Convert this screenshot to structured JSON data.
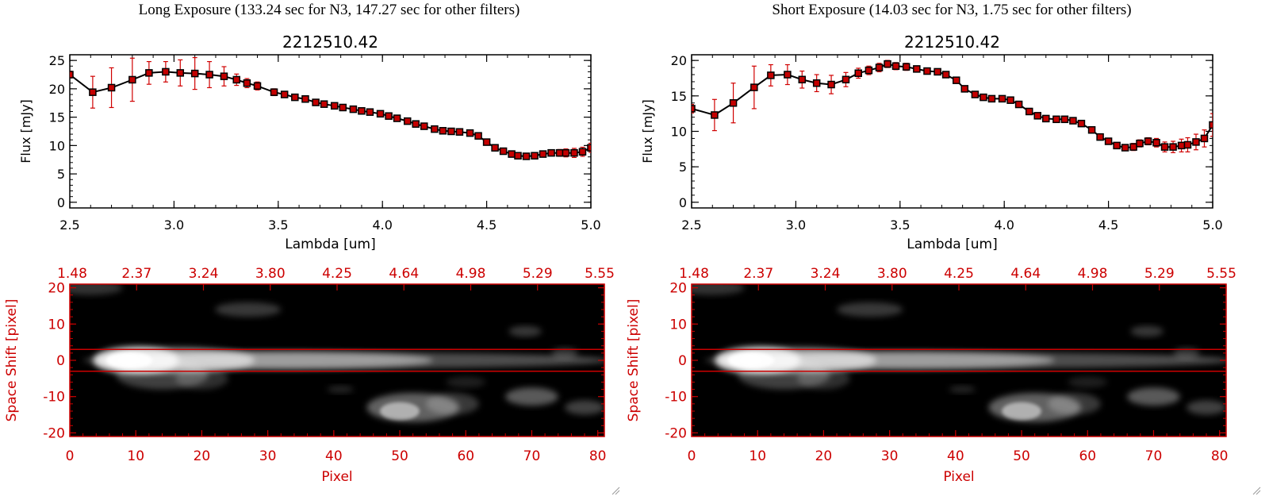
{
  "panels": [
    {
      "heading": "Long Exposure (133.24 sec for N3, 147.27 sec for other filters)"
    },
    {
      "heading": "Short Exposure (14.03 sec for N3, 1.75 sec for other filters)"
    }
  ],
  "chart_data": [
    {
      "type": "line",
      "title": "2212510.42",
      "xlabel": "Lambda [um]",
      "ylabel": "Flux [mJy]",
      "xlim": [
        2.5,
        5.0
      ],
      "ylim": [
        -1,
        26
      ],
      "xticks": [
        "2.5",
        "3.0",
        "3.5",
        "4.0",
        "4.5",
        "5.0"
      ],
      "yticks": [
        "0",
        "5",
        "10",
        "15",
        "20",
        "25"
      ],
      "series": [
        {
          "x": [
            2.5,
            2.61,
            2.7,
            2.8,
            2.88,
            2.96,
            3.03,
            3.1,
            3.17,
            3.24,
            3.3,
            3.35,
            3.4,
            3.48,
            3.53,
            3.58,
            3.63,
            3.68,
            3.72,
            3.77,
            3.81,
            3.86,
            3.9,
            3.94,
            3.99,
            4.03,
            4.07,
            4.12,
            4.16,
            4.2,
            4.25,
            4.29,
            4.33,
            4.37,
            4.42,
            4.46,
            4.5,
            4.54,
            4.58,
            4.62,
            4.65,
            4.69,
            4.73,
            4.77,
            4.81,
            4.85,
            4.88,
            4.92,
            4.96,
            5.0
          ],
          "y": [
            22.5,
            19.4,
            20.2,
            21.6,
            22.8,
            23.0,
            22.8,
            22.7,
            22.5,
            22.2,
            21.6,
            21.0,
            20.5,
            19.4,
            19.0,
            18.5,
            18.2,
            17.6,
            17.3,
            17.0,
            16.7,
            16.4,
            16.1,
            15.9,
            15.6,
            15.2,
            14.8,
            14.3,
            13.8,
            13.4,
            12.9,
            12.6,
            12.5,
            12.4,
            12.2,
            11.7,
            10.6,
            9.6,
            9.0,
            8.5,
            8.2,
            8.1,
            8.2,
            8.5,
            8.7,
            8.7,
            8.7,
            8.7,
            8.9,
            9.6
          ],
          "yerr": [
            0.6,
            2.8,
            3.5,
            3.8,
            2.0,
            1.8,
            2.3,
            2.8,
            2.3,
            1.7,
            1.0,
            0.8,
            0.7,
            0.6,
            0.5,
            0.5,
            0.5,
            0.5,
            0.5,
            0.5,
            0.5,
            0.5,
            0.5,
            0.5,
            0.5,
            0.5,
            0.5,
            0.5,
            0.5,
            0.5,
            0.5,
            0.5,
            0.5,
            0.5,
            0.5,
            0.5,
            0.5,
            0.5,
            0.5,
            0.5,
            0.5,
            0.5,
            0.5,
            0.5,
            0.5,
            0.6,
            0.7,
            0.8,
            0.8,
            0.8
          ]
        }
      ]
    },
    {
      "type": "heatmap",
      "xlabel": "Pixel",
      "ylabel": "Space Shift [pixel]",
      "xlim": [
        0,
        81
      ],
      "ylim": [
        -21,
        21
      ],
      "xticks": [
        "0",
        "10",
        "20",
        "30",
        "40",
        "50",
        "60",
        "70",
        "80"
      ],
      "yticks": [
        "-20",
        "-10",
        "0",
        "10",
        "20"
      ],
      "top_axis_labels": [
        "1.48",
        "2.37",
        "3.24",
        "3.80",
        "4.25",
        "4.64",
        "4.98",
        "5.29",
        "5.55"
      ],
      "aperture_lines": [
        3,
        -3
      ],
      "colormap": "grayscale"
    },
    {
      "type": "line",
      "title": "2212510.42",
      "xlabel": "Lambda [um]",
      "ylabel": "Flux [mJy]",
      "xlim": [
        2.5,
        5.0
      ],
      "ylim": [
        -0.8,
        20.8
      ],
      "xticks": [
        "2.5",
        "3.0",
        "3.5",
        "4.0",
        "4.5",
        "5.0"
      ],
      "yticks": [
        "0",
        "5",
        "10",
        "15",
        "20"
      ],
      "series": [
        {
          "x": [
            2.5,
            2.61,
            2.7,
            2.8,
            2.88,
            2.96,
            3.03,
            3.1,
            3.17,
            3.24,
            3.3,
            3.35,
            3.4,
            3.44,
            3.48,
            3.53,
            3.58,
            3.63,
            3.68,
            3.72,
            3.77,
            3.81,
            3.86,
            3.9,
            3.94,
            3.99,
            4.03,
            4.07,
            4.12,
            4.16,
            4.2,
            4.25,
            4.29,
            4.33,
            4.37,
            4.42,
            4.46,
            4.5,
            4.54,
            4.58,
            4.62,
            4.65,
            4.69,
            4.73,
            4.77,
            4.81,
            4.85,
            4.88,
            4.92,
            4.96,
            5.0
          ],
          "y": [
            13.2,
            12.3,
            14.0,
            16.2,
            17.9,
            18.0,
            17.3,
            16.8,
            16.6,
            17.3,
            18.2,
            18.6,
            19.0,
            19.5,
            19.2,
            19.1,
            18.8,
            18.5,
            18.4,
            18.0,
            17.2,
            16.0,
            15.2,
            14.8,
            14.6,
            14.6,
            14.4,
            13.8,
            12.8,
            12.2,
            11.8,
            11.7,
            11.7,
            11.5,
            11.1,
            10.2,
            9.2,
            8.6,
            8.0,
            7.7,
            7.8,
            8.3,
            8.6,
            8.4,
            7.8,
            7.8,
            8.0,
            8.1,
            8.5,
            9.0,
            10.9
          ],
          "yerr": [
            0.6,
            2.2,
            2.8,
            3.0,
            1.5,
            1.4,
            1.2,
            1.2,
            1.3,
            1.0,
            0.7,
            0.6,
            0.6,
            0.5,
            0.5,
            0.5,
            0.4,
            0.4,
            0.4,
            0.4,
            0.4,
            0.4,
            0.4,
            0.4,
            0.4,
            0.4,
            0.4,
            0.4,
            0.4,
            0.4,
            0.4,
            0.4,
            0.4,
            0.4,
            0.4,
            0.4,
            0.4,
            0.4,
            0.4,
            0.4,
            0.5,
            0.5,
            0.5,
            0.6,
            0.7,
            0.8,
            0.9,
            1.0,
            1.1,
            1.2,
            1.6
          ]
        }
      ]
    },
    {
      "type": "heatmap",
      "xlabel": "Pixel",
      "ylabel": "Space Shift [pixel]",
      "xlim": [
        0,
        81
      ],
      "ylim": [
        -21,
        21
      ],
      "xticks": [
        "0",
        "10",
        "20",
        "30",
        "40",
        "50",
        "60",
        "70",
        "80"
      ],
      "yticks": [
        "-20",
        "-10",
        "0",
        "10",
        "20"
      ],
      "top_axis_labels": [
        "1.48",
        "2.37",
        "3.24",
        "3.80",
        "4.25",
        "4.64",
        "4.98",
        "5.29",
        "5.55"
      ],
      "aperture_lines": [
        3,
        -3
      ],
      "colormap": "grayscale"
    }
  ]
}
